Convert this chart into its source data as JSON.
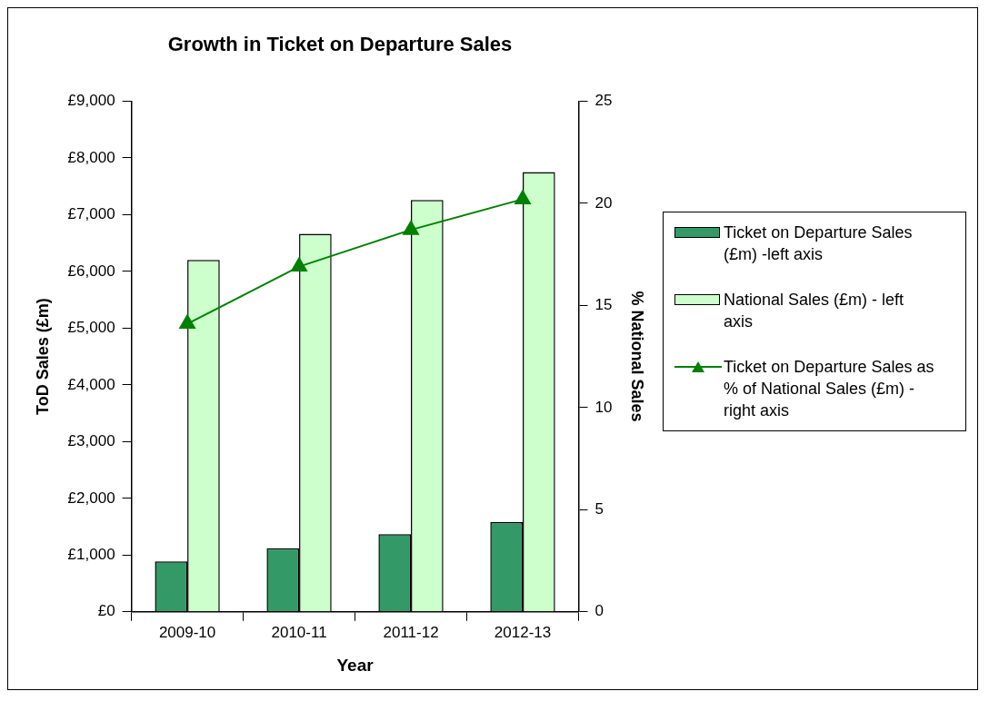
{
  "chart_data": {
    "type": "bar",
    "title": "Growth in Ticket on Departure Sales",
    "xlabel": "Year",
    "ylabel": "ToD Sales (£m)",
    "y2label": "% National Sales",
    "categories": [
      "2009-10",
      "2010-11",
      "2011-12",
      "2012-13"
    ],
    "series": [
      {
        "name": "Ticket on Departure Sales (£m) -left axis",
        "color": "#339966",
        "values": [
          890,
          1120,
          1370,
          1580
        ]
      },
      {
        "name": "National Sales (£m) - left axis",
        "color": "#ccffcc",
        "values": [
          6200,
          6660,
          7260,
          7750
        ]
      },
      {
        "name": "Ticket on Departure Sales as % of National Sales (£m) - right axis",
        "type": "line",
        "axis": "y2",
        "color": "#008000",
        "marker": "triangle",
        "values": [
          14.1,
          16.9,
          18.7,
          20.2
        ]
      }
    ],
    "ylim": [
      0,
      9000
    ],
    "yticks": [
      {
        "value": 0,
        "label": "£0"
      },
      {
        "value": 1000,
        "label": "£1,000"
      },
      {
        "value": 2000,
        "label": "£2,000"
      },
      {
        "value": 3000,
        "label": "£3,000"
      },
      {
        "value": 4000,
        "label": "£4,000"
      },
      {
        "value": 5000,
        "label": "£5,000"
      },
      {
        "value": 6000,
        "label": "£6,000"
      },
      {
        "value": 7000,
        "label": "£7,000"
      },
      {
        "value": 8000,
        "label": "£8,000"
      },
      {
        "value": 9000,
        "label": "£9,000"
      }
    ],
    "y2lim": [
      0,
      25
    ],
    "y2ticks": [
      0,
      5,
      10,
      15,
      20,
      25
    ],
    "grid": false,
    "legend": "right"
  }
}
